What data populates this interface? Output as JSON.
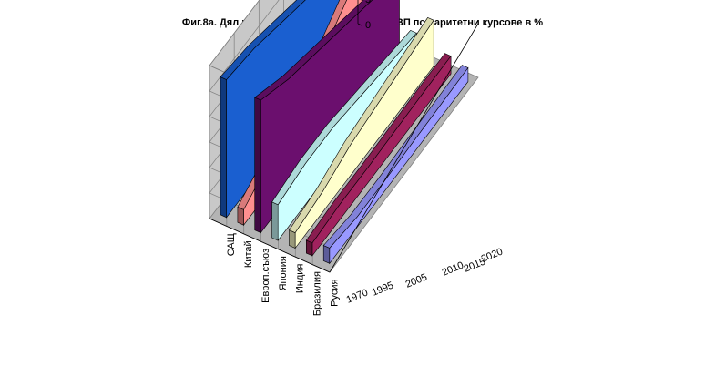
{
  "chart_data": {
    "type": "area",
    "title": "Фиг.8а. Дял на някои страни в световния БВП по паритетни курсове в %",
    "categories": [
      "1970",
      "1995",
      "2005",
      "2010",
      "2015",
      "2020"
    ],
    "x_tick_labels": [
      "1970",
      "1995",
      "2005",
      "2010",
      "2015",
      "2020"
    ],
    "zlim": [
      0,
      30
    ],
    "z_ticks": [
      "0",
      "5",
      "10",
      "15",
      "20",
      "25",
      "30"
    ],
    "series": [
      {
        "name": "САЩ",
        "color": "#1a5fd0",
        "values": [
          27,
          26,
          24,
          22,
          20,
          18
        ]
      },
      {
        "name": "Китай",
        "color": "#ff8f8f",
        "values": [
          3,
          6,
          10,
          14,
          19,
          24
        ]
      },
      {
        "name": "Европ.съюз",
        "color": "#6b0f6e",
        "values": [
          26,
          23,
          21,
          19,
          17,
          15
        ]
      },
      {
        "name": "Япония",
        "color": "#ccffff",
        "values": [
          7,
          8,
          8,
          7,
          6,
          5
        ]
      },
      {
        "name": "Индия",
        "color": "#ffffcc",
        "values": [
          3,
          4,
          6,
          7,
          8,
          9
        ]
      },
      {
        "name": "Бразилия",
        "color": "#a1225e",
        "values": [
          2.5,
          3,
          3,
          3.2,
          3.4,
          3.5
        ]
      },
      {
        "name": "Русия",
        "color": "#9999ff",
        "values": [
          3,
          2,
          2,
          2.3,
          2.5,
          2.7
        ]
      }
    ],
    "grid": true
  }
}
